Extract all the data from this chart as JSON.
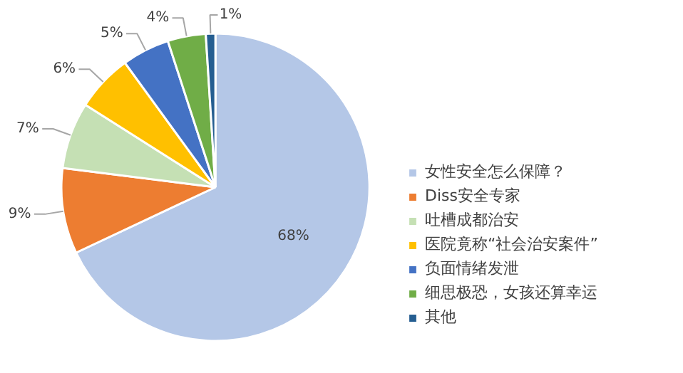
{
  "chart_data": {
    "type": "pie",
    "categories": [
      "女性安全怎么保障？",
      "Diss安全专家",
      "吐槽成都治安",
      "医院竟称“社会治安案件”",
      "负面情绪发泄",
      "细思极恐，女孩还算幸运",
      "其他"
    ],
    "values": [
      68,
      9,
      7,
      6,
      5,
      4,
      1
    ],
    "colors": [
      "#b4c7e7",
      "#ed7d31",
      "#c5e0b4",
      "#ffc000",
      "#4472c4",
      "#70ad47",
      "#255e91"
    ],
    "value_labels": [
      "68%",
      "9%",
      "7%",
      "6%",
      "5%",
      "4%",
      "1%"
    ],
    "legend": "right"
  }
}
